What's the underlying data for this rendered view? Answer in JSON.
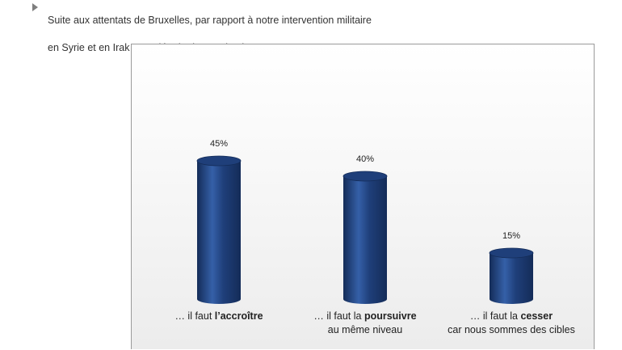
{
  "question": {
    "line1": "Suite aux attentats de Bruxelles, par rapport à notre intervention militaire",
    "line2": "en Syrie et en Irak pour détruire l’Etat Islamique …"
  },
  "colors": {
    "bar": "#1f3f7a",
    "bar_dark": "#142c58",
    "bar_light": "#3560a8"
  },
  "chart_data": {
    "type": "bar",
    "categories": [
      {
        "prefix": "… il faut ",
        "bold": "l’accroître",
        "suffix": "",
        "line2": ""
      },
      {
        "prefix": "… il faut la ",
        "bold": "poursuivre",
        "suffix": "",
        "line2": "au même niveau"
      },
      {
        "prefix": "… il faut la ",
        "bold": "cesser",
        "suffix": "",
        "line2": "car nous sommes des cibles"
      }
    ],
    "values": [
      45,
      40,
      15
    ],
    "data_labels": [
      "45%",
      "40%",
      "15%"
    ],
    "ylim": [
      0,
      50
    ],
    "grid": false,
    "legend": "none"
  }
}
